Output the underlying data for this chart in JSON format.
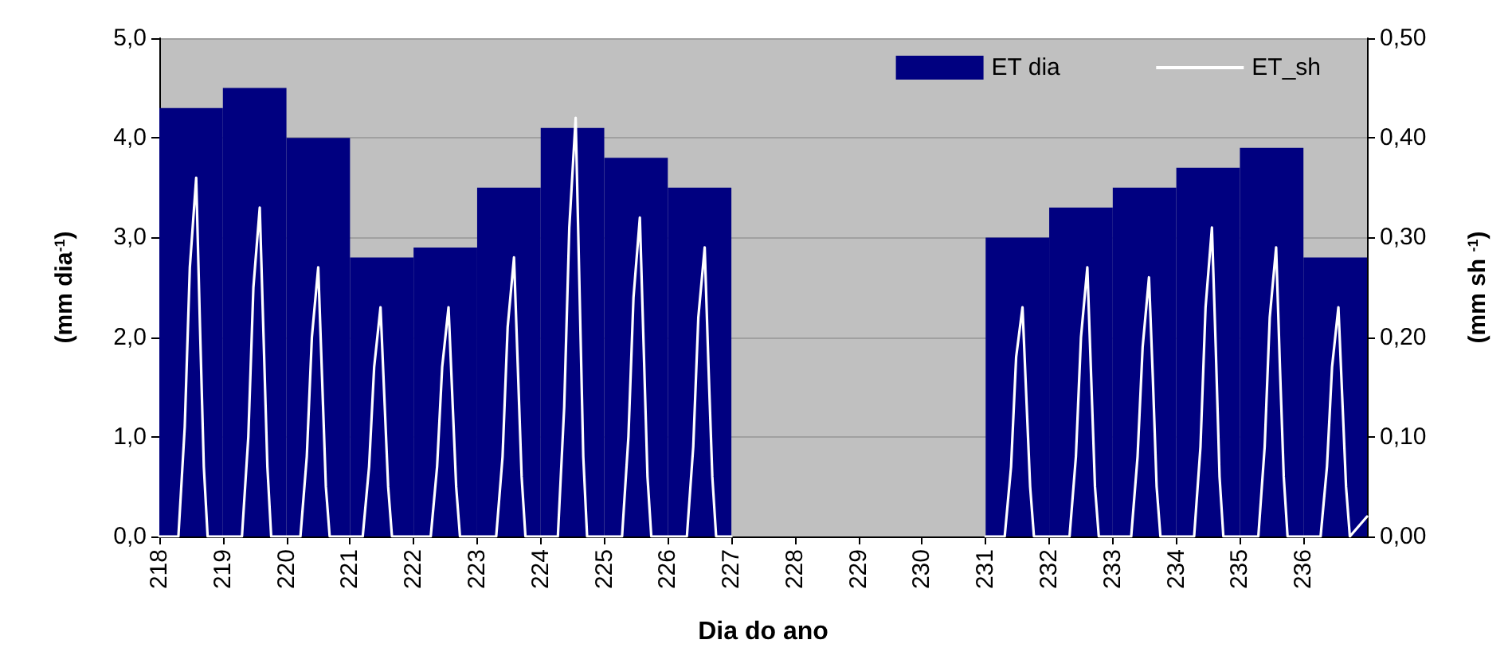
{
  "chart_data": {
    "type": "histogram",
    "xlabel": "Dia do ano",
    "ylabel": "(mm dia$^{-1}$)",
    "y2label": "(mm sh $^{-1}$)",
    "xlim": [
      218,
      237
    ],
    "xticks": [
      218,
      219,
      220,
      221,
      222,
      223,
      224,
      225,
      226,
      227,
      228,
      229,
      230,
      231,
      232,
      233,
      234,
      235,
      236
    ],
    "ylim": [
      0,
      5
    ],
    "yticks": [
      {
        "value": 0,
        "label": "0,0"
      },
      {
        "value": 1,
        "label": "1,0"
      },
      {
        "value": 2,
        "label": "2,0"
      },
      {
        "value": 3,
        "label": "3,0"
      },
      {
        "value": 4,
        "label": "4,0"
      },
      {
        "value": 5,
        "label": "5,0"
      }
    ],
    "y2lim": [
      0,
      0.5
    ],
    "y2ticks": [
      {
        "value": 0,
        "label": "0,00"
      },
      {
        "value": 0.1,
        "label": "0,10"
      },
      {
        "value": 0.2,
        "label": "0,20"
      },
      {
        "value": 0.3,
        "label": "0,30"
      },
      {
        "value": 0.4,
        "label": "0,40"
      },
      {
        "value": 0.5,
        "label": "0,50"
      }
    ],
    "grid": "y",
    "legend": "top right",
    "series": [
      {
        "name": "ET dia",
        "color": "#000080",
        "bins": [
          218,
          219,
          220,
          221,
          222,
          223,
          224,
          225,
          226,
          227,
          228,
          229,
          230,
          231,
          232,
          233,
          234,
          235,
          236,
          237
        ],
        "values": [
          4.3,
          4.5,
          4.0,
          2.8,
          2.9,
          3.5,
          4.1,
          3.8,
          3.5,
          null,
          null,
          null,
          null,
          3.0,
          3.3,
          3.5,
          3.7,
          3.9,
          2.8
        ]
      },
      {
        "name": "ET_sh",
        "type": "line",
        "axis": "y2",
        "color": "#ffffff",
        "marker": "none",
        "x": [
          218.0,
          218.3,
          218.4,
          218.48,
          218.58,
          218.64,
          218.7,
          218.76,
          219.3,
          219.4,
          219.48,
          219.58,
          219.64,
          219.7,
          219.76,
          220.22,
          220.32,
          220.4,
          220.5,
          220.56,
          220.62,
          220.68,
          221.2,
          221.3,
          221.38,
          221.48,
          221.54,
          221.6,
          221.66,
          222.27,
          222.37,
          222.45,
          222.55,
          222.61,
          222.67,
          222.73,
          223.3,
          223.4,
          223.48,
          223.58,
          223.64,
          223.7,
          223.76,
          224.27,
          224.37,
          224.45,
          224.55,
          224.61,
          224.67,
          224.73,
          225.28,
          225.38,
          225.46,
          225.56,
          225.62,
          225.68,
          225.74,
          226.3,
          226.4,
          226.48,
          226.58,
          226.64,
          226.7,
          226.76,
          227.0,
          229.0,
          231.0,
          231.3,
          231.4,
          231.48,
          231.58,
          231.64,
          231.7,
          231.76,
          232.32,
          232.42,
          232.5,
          232.6,
          232.66,
          232.72,
          232.78,
          233.29,
          233.39,
          233.47,
          233.57,
          233.63,
          233.69,
          233.75,
          234.28,
          234.38,
          234.46,
          234.56,
          234.62,
          234.68,
          234.74,
          235.29,
          235.39,
          235.47,
          235.57,
          235.63,
          235.69,
          235.75,
          236.27,
          236.37,
          236.45,
          236.55,
          236.61,
          236.67,
          236.73,
          237.0
        ],
        "values": [
          0,
          0,
          0.11,
          0.27,
          0.36,
          0.21,
          0.07,
          0,
          0,
          0.1,
          0.25,
          0.33,
          0.2,
          0.07,
          0,
          0,
          0.08,
          0.2,
          0.27,
          0.16,
          0.05,
          0,
          0,
          0.07,
          0.17,
          0.23,
          0.14,
          0.05,
          0,
          0,
          0.07,
          0.17,
          0.23,
          0.14,
          0.05,
          0,
          0,
          0.08,
          0.21,
          0.28,
          0.17,
          0.06,
          0,
          0,
          0.13,
          0.31,
          0.42,
          0.25,
          0.08,
          0,
          0,
          0.1,
          0.24,
          0.32,
          0.19,
          0.06,
          0,
          0,
          0.09,
          0.22,
          0.29,
          0.17,
          0.06,
          0,
          0,
          null,
          0,
          0,
          0.07,
          0.18,
          0.23,
          0.14,
          0.05,
          0,
          0,
          0.08,
          0.2,
          0.27,
          0.16,
          0.05,
          0,
          0,
          0.08,
          0.19,
          0.26,
          0.16,
          0.05,
          0,
          0,
          0.09,
          0.23,
          0.31,
          0.19,
          0.06,
          0,
          0,
          0.09,
          0.22,
          0.29,
          0.17,
          0.06,
          0,
          0,
          0.07,
          0.17,
          0.23,
          0.14,
          0.05,
          0,
          0.02
        ]
      }
    ]
  }
}
